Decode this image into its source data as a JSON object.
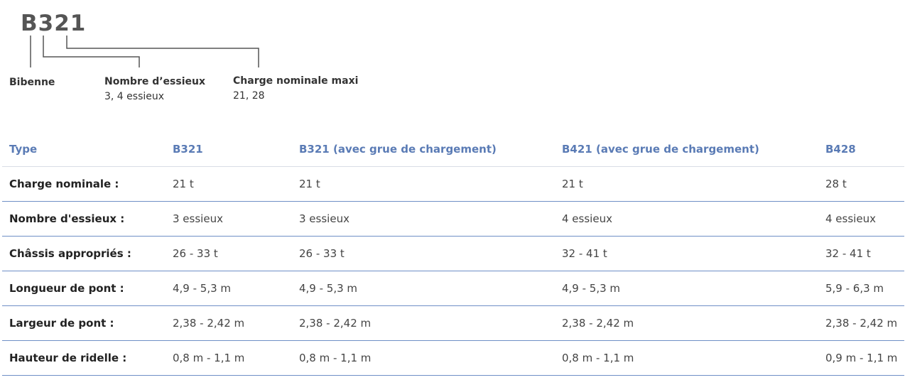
{
  "diagram": {
    "model_code": "B321",
    "parts": [
      {
        "label": "Bibenne",
        "sub": ""
      },
      {
        "label": "Nombre d’essieux",
        "sub": "3, 4 essieux"
      },
      {
        "label": "Charge nominale maxi",
        "sub": "21, 28"
      }
    ],
    "line_color": "#555555"
  },
  "table": {
    "headers": [
      "Type",
      "B321",
      "B321 (avec grue de chargement)",
      "B421 (avec grue de chargement)",
      "B428"
    ],
    "rows": [
      {
        "label": "Charge nominale :",
        "cells": [
          "21 t",
          "21 t",
          "21 t",
          "28 t"
        ]
      },
      {
        "label": "Nombre d'essieux :",
        "cells": [
          "3 essieux",
          "3 essieux",
          "4 essieux",
          "4 essieux"
        ]
      },
      {
        "label": "Châssis appropriés :",
        "cells": [
          "26 - 33 t",
          "26 - 33 t",
          "32 - 41 t",
          "32 - 41 t"
        ]
      },
      {
        "label": "Longueur de pont :",
        "cells": [
          "4,9 - 5,3 m",
          "4,9 - 5,3 m",
          "4,9 - 5,3 m",
          "5,9 - 6,3 m"
        ]
      },
      {
        "label": "Largeur de pont :",
        "cells": [
          "2,38 - 2,42 m",
          "2,38 - 2,42 m",
          "2,38 - 2,42 m",
          "2,38 - 2,42 m"
        ]
      },
      {
        "label": "Hauteur de ridelle :",
        "cells": [
          "0,8 m - 1,1 m",
          "0,8 m - 1,1 m",
          "0,8 m - 1,1 m",
          "0,9 m - 1,1 m"
        ]
      }
    ],
    "header_color": "#5a7bb5",
    "row_border_color": "#6f8fc6"
  }
}
